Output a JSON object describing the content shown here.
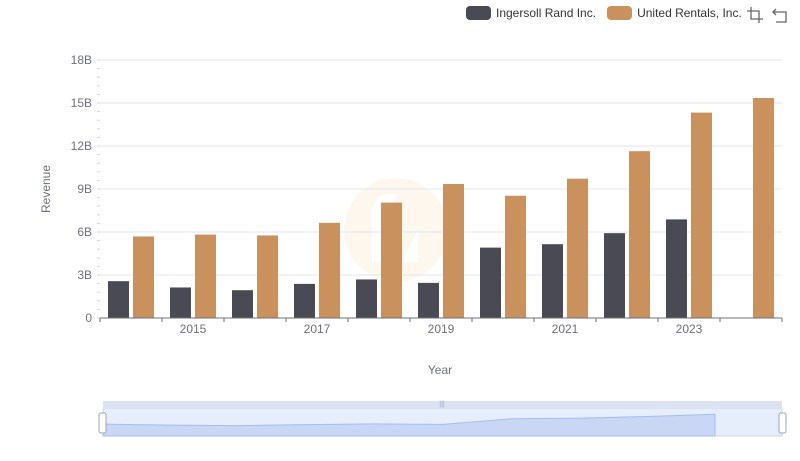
{
  "chart_data": {
    "type": "bar",
    "xlabel": "Year",
    "ylabel": "Revenue",
    "ylim": [
      0,
      18000000000
    ],
    "y_ticks": [
      "0",
      "3B",
      "6B",
      "9B",
      "12B",
      "15B",
      "18B"
    ],
    "x": [
      2014,
      2015,
      2016,
      2017,
      2018,
      2019,
      2020,
      2021,
      2022,
      2023,
      2024
    ],
    "x_tick_labels": [
      "2015",
      "2017",
      "2019",
      "2021",
      "2023"
    ],
    "grid": true,
    "legend_position": "top-right",
    "series": [
      {
        "name": "Ingersoll Rand Inc.",
        "color": "#4a4a55",
        "values": [
          2570000000,
          2130000000,
          1940000000,
          2380000000,
          2690000000,
          2450000000,
          4910000000,
          5150000000,
          5920000000,
          6880000000,
          null
        ]
      },
      {
        "name": "United Rentals, Inc.",
        "color": "#c8915e",
        "values": [
          5690000000,
          5820000000,
          5760000000,
          6640000000,
          8050000000,
          9350000000,
          8530000000,
          9720000000,
          11640000000,
          14330000000,
          15350000000
        ]
      }
    ]
  },
  "toolbox": {
    "zoom_icon": "zoom-select-icon",
    "reset_icon": "zoom-reset-icon"
  }
}
